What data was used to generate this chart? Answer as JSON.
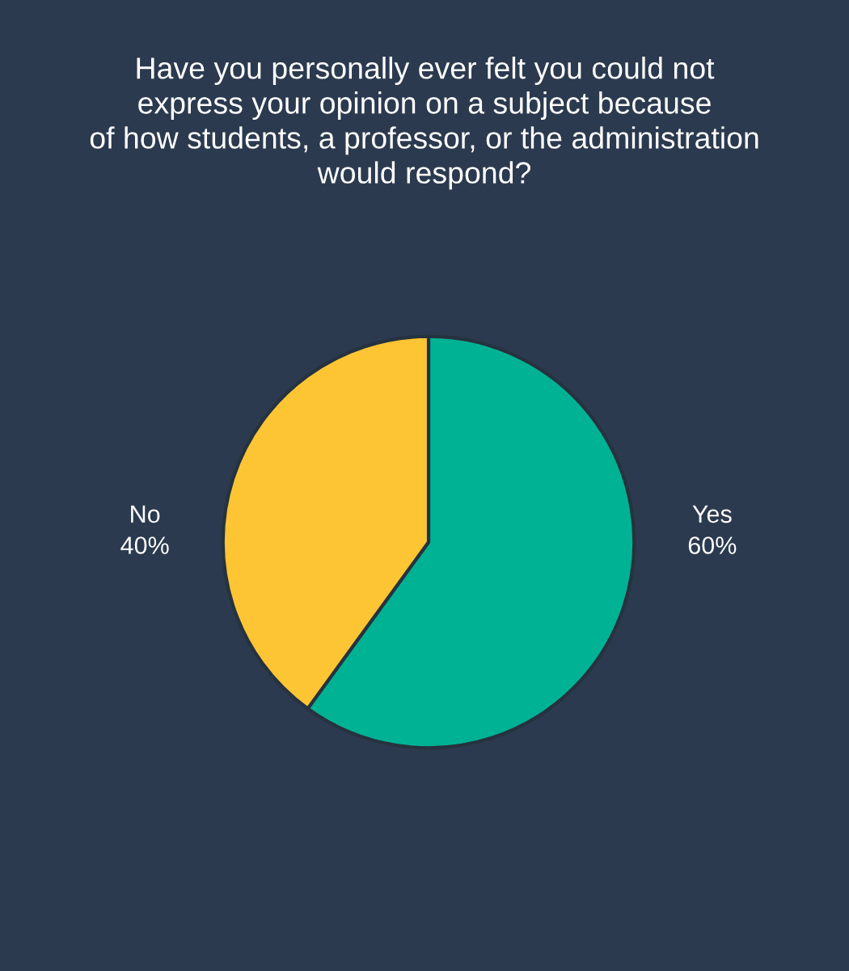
{
  "chart_data": {
    "type": "pie",
    "title": "Have you personally ever felt you could not\nexpress your opinion on a subject because\nof how students, a professor, or the administration\nwould respond?",
    "categories": [
      "Yes",
      "No"
    ],
    "values": [
      60,
      40
    ],
    "value_labels": [
      "60%",
      "40%"
    ],
    "colors": [
      "#00b294",
      "#fdc533"
    ],
    "legend": false
  }
}
